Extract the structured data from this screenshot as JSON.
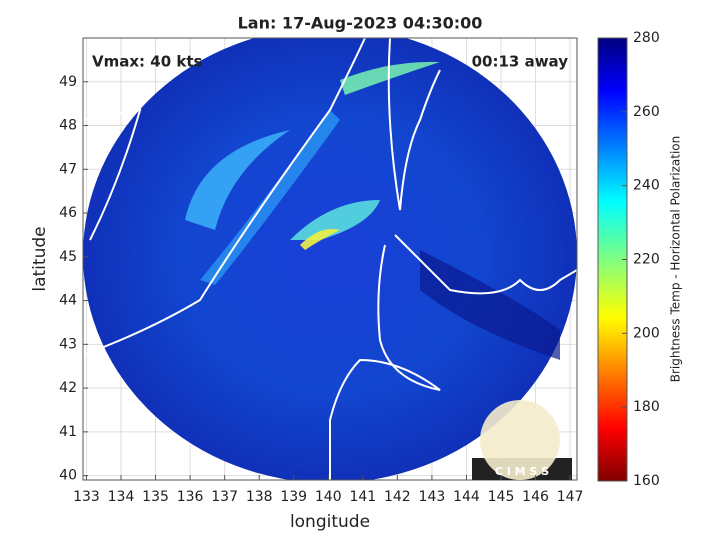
{
  "chart_data": {
    "type": "map",
    "title": "Lan: 17-Aug-2023 04:30:00",
    "xlabel": "longitude",
    "ylabel": "latitude",
    "annotations": [
      "Vmax: 40 kts",
      "00:13 away"
    ],
    "logo_text": "C I M S S",
    "xlim": [
      132.9,
      147.2
    ],
    "ylim": [
      39.9,
      50
    ],
    "xticks": [
      133,
      134,
      135,
      136,
      137,
      138,
      139,
      140,
      141,
      142,
      143,
      144,
      145,
      146,
      147
    ],
    "yticks": [
      40,
      41,
      42,
      43,
      44,
      45,
      46,
      47,
      48,
      49
    ],
    "grid": true,
    "colorbar": {
      "label": "Brightness Temp - Horizontal Polarization",
      "lim": [
        160,
        280
      ],
      "ticks": [
        160,
        180,
        200,
        220,
        240,
        260,
        280
      ]
    }
  }
}
